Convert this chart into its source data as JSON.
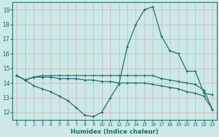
{
  "xlabel": "Humidex (Indice chaleur)",
  "bg_color": "#cce8e8",
  "line_color": "#1a6b6b",
  "grid_color": "#b0d0d0",
  "xlim": [
    -0.5,
    23.5
  ],
  "ylim": [
    11.5,
    19.5
  ],
  "xticks": [
    0,
    1,
    2,
    3,
    4,
    5,
    6,
    7,
    8,
    9,
    10,
    11,
    12,
    13,
    14,
    15,
    16,
    17,
    18,
    19,
    20,
    21,
    22,
    23
  ],
  "yticks": [
    12,
    13,
    14,
    15,
    16,
    17,
    18,
    19
  ],
  "line1_x": [
    0,
    1,
    2,
    3,
    4,
    5,
    6,
    7,
    8,
    9,
    10,
    11,
    12,
    13,
    14,
    15,
    16,
    17,
    18,
    19,
    20,
    21,
    22,
    23
  ],
  "line1_y": [
    14.5,
    14.2,
    13.8,
    13.6,
    13.4,
    13.1,
    12.8,
    12.3,
    11.8,
    11.7,
    12.0,
    13.0,
    13.9,
    16.5,
    18.0,
    19.0,
    19.2,
    17.2,
    16.2,
    16.0,
    14.8,
    14.8,
    13.3,
    13.2
  ],
  "line2_x": [
    0,
    1,
    2,
    3,
    4,
    5,
    6,
    7,
    8,
    9,
    10,
    11,
    12,
    13,
    14,
    15,
    16,
    17,
    18,
    19,
    20,
    21,
    22,
    23
  ],
  "line2_y": [
    14.5,
    14.2,
    14.4,
    14.4,
    14.4,
    14.3,
    14.3,
    14.3,
    14.2,
    14.2,
    14.1,
    14.1,
    14.0,
    14.0,
    14.0,
    14.0,
    13.9,
    13.8,
    13.7,
    13.6,
    13.4,
    13.3,
    13.1,
    12.2
  ],
  "line3_x": [
    0,
    1,
    2,
    3,
    4,
    5,
    6,
    7,
    8,
    9,
    10,
    11,
    12,
    13,
    14,
    15,
    16,
    17,
    18,
    19,
    20,
    21,
    22,
    23
  ],
  "line3_y": [
    14.5,
    14.2,
    14.4,
    14.5,
    14.5,
    14.5,
    14.5,
    14.5,
    14.5,
    14.5,
    14.5,
    14.5,
    14.5,
    14.5,
    14.5,
    14.5,
    14.5,
    14.3,
    14.2,
    14.1,
    14.0,
    13.9,
    13.5,
    12.2
  ]
}
